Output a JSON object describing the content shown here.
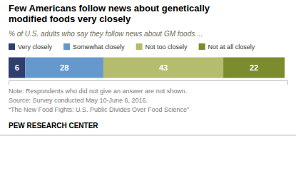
{
  "chart_data": {
    "type": "bar",
    "title": "Few Americans follow news about genetically\nmodified foods very closely",
    "subtitle": "% of U.S. adults who say they follow  news about GM foods ...",
    "orientation": "horizontal",
    "stacked": true,
    "data_labels": true,
    "tick_labels": false,
    "categories": [
      null
    ],
    "xlim": [
      0,
      100
    ],
    "series": [
      {
        "name": "Very closely",
        "color": "#2e3f6e",
        "values": [
          6
        ]
      },
      {
        "name": "Somewhat closely",
        "color": "#6599cc",
        "values": [
          28
        ]
      },
      {
        "name": "Not too closely",
        "color": "#b5bc6e",
        "values": [
          43
        ]
      },
      {
        "name": "Not at all closely",
        "color": "#7a8c2e",
        "values": [
          22
        ]
      }
    ],
    "notes": [
      "Note: Respondents who did not give an answer are not shown.",
      "Source: Survey conducted May 10-June 6, 2016.",
      "“The New Food Fights: U.S. Public Divides Over Food Science”"
    ],
    "footer": "PEW RESEARCH CENTER"
  }
}
